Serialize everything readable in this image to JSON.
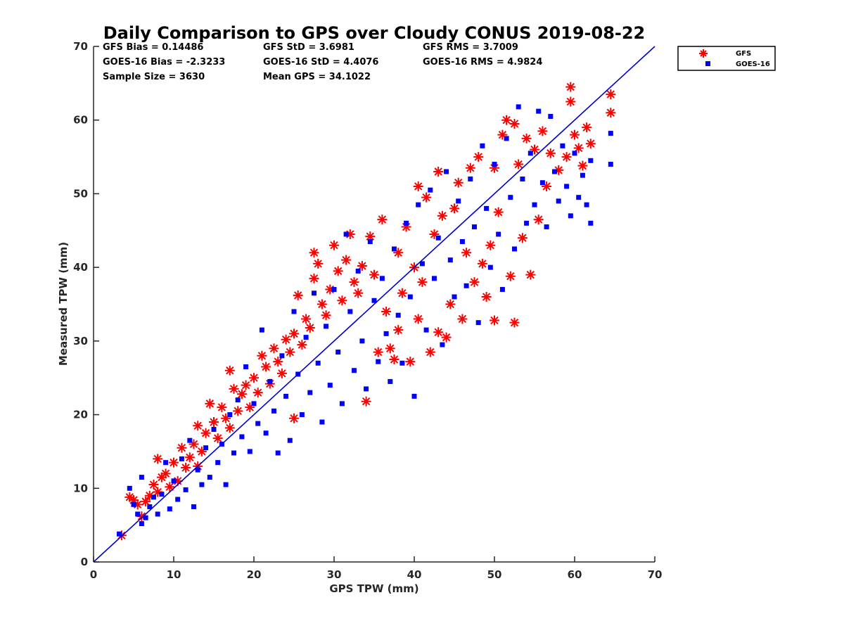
{
  "chart_data": {
    "type": "scatter",
    "title": "Daily Comparison to GPS over Cloudy CONUS 2019-08-22",
    "xlabel": "GPS TPW (mm)",
    "ylabel": "Measured TPW (mm)",
    "xlim": [
      0,
      70
    ],
    "ylim": [
      0,
      70
    ],
    "xticks": [
      "0",
      "10",
      "20",
      "30",
      "40",
      "50",
      "60",
      "70"
    ],
    "yticks": [
      "0",
      "10",
      "20",
      "30",
      "40",
      "50",
      "60",
      "70"
    ],
    "grid": false,
    "legend_position": "outside top-right",
    "reference_line": {
      "x": [
        0,
        70
      ],
      "y": [
        0,
        70
      ],
      "color": "#0000cc"
    },
    "stats": {
      "row1": [
        "GFS Bias = 0.14486",
        "GFS StD = 3.6981",
        "GFS RMS = 3.7009"
      ],
      "row2": [
        "GOES-16 Bias = -2.3233",
        "GOES-16 StD = 4.4076",
        "GOES-16 RMS = 4.9824"
      ],
      "row3": [
        "Sample Size = 3630",
        "Mean GPS = 34.1022"
      ]
    },
    "series": [
      {
        "name": "GFS",
        "marker": "asterisk",
        "color": "#ff0000",
        "points": [
          [
            3.5,
            3.6
          ],
          [
            4.5,
            8.8
          ],
          [
            5,
            8.4
          ],
          [
            5.5,
            7.8
          ],
          [
            6,
            6.2
          ],
          [
            6.5,
            8.2
          ],
          [
            7,
            9.0
          ],
          [
            7.5,
            10.5
          ],
          [
            8,
            9.5
          ],
          [
            8,
            14
          ],
          [
            8.5,
            11.5
          ],
          [
            9,
            12
          ],
          [
            9.5,
            10.2
          ],
          [
            10,
            13.5
          ],
          [
            10.5,
            11
          ],
          [
            11,
            15.5
          ],
          [
            11.5,
            12.8
          ],
          [
            12,
            14.2
          ],
          [
            12.5,
            16
          ],
          [
            13,
            13
          ],
          [
            13,
            18.5
          ],
          [
            13.5,
            15
          ],
          [
            14,
            17.5
          ],
          [
            14.5,
            21.5
          ],
          [
            15,
            19
          ],
          [
            15.5,
            16.8
          ],
          [
            16,
            21
          ],
          [
            16.5,
            19.5
          ],
          [
            17,
            18.2
          ],
          [
            17,
            26
          ],
          [
            17.5,
            23.5
          ],
          [
            18,
            20.5
          ],
          [
            18.5,
            22.8
          ],
          [
            19,
            24
          ],
          [
            19.5,
            21
          ],
          [
            20,
            25
          ],
          [
            20.5,
            23
          ],
          [
            21,
            28
          ],
          [
            21.5,
            26.5
          ],
          [
            22,
            24.2
          ],
          [
            22.5,
            29
          ],
          [
            23,
            27.2
          ],
          [
            23.5,
            25.6
          ],
          [
            24,
            30.2
          ],
          [
            24.5,
            28.5
          ],
          [
            25,
            31
          ],
          [
            25,
            19.5
          ],
          [
            25.5,
            36.2
          ],
          [
            26,
            29.5
          ],
          [
            26.5,
            33
          ],
          [
            27,
            31.8
          ],
          [
            27.5,
            38.5
          ],
          [
            27.5,
            42
          ],
          [
            28,
            40.5
          ],
          [
            28.5,
            35
          ],
          [
            29,
            33.5
          ],
          [
            29.5,
            37
          ],
          [
            30,
            43
          ],
          [
            30.5,
            39.5
          ],
          [
            31,
            35.5
          ],
          [
            31.5,
            41
          ],
          [
            32,
            44.5
          ],
          [
            32.5,
            38
          ],
          [
            33,
            36.5
          ],
          [
            33.5,
            40.2
          ],
          [
            34,
            21.8
          ],
          [
            34.5,
            44.2
          ],
          [
            35,
            39
          ],
          [
            35.5,
            28.5
          ],
          [
            36,
            46.5
          ],
          [
            36.5,
            34
          ],
          [
            37,
            29
          ],
          [
            37.5,
            27.5
          ],
          [
            38,
            42
          ],
          [
            38,
            31.5
          ],
          [
            38.5,
            36.5
          ],
          [
            39,
            45.5
          ],
          [
            39.5,
            27.2
          ],
          [
            40,
            40
          ],
          [
            40.5,
            33
          ],
          [
            40.5,
            51
          ],
          [
            41,
            38
          ],
          [
            41.5,
            49.5
          ],
          [
            42,
            28.5
          ],
          [
            42.5,
            44.5
          ],
          [
            43,
            31.2
          ],
          [
            43,
            53
          ],
          [
            43.5,
            47
          ],
          [
            44,
            30.5
          ],
          [
            44.5,
            35
          ],
          [
            45,
            48
          ],
          [
            45.5,
            51.5
          ],
          [
            46,
            33
          ],
          [
            46.5,
            42
          ],
          [
            47,
            53.5
          ],
          [
            47.5,
            38
          ],
          [
            48,
            55
          ],
          [
            48.5,
            40.5
          ],
          [
            49,
            36
          ],
          [
            49.5,
            43
          ],
          [
            50,
            32.8
          ],
          [
            50,
            53.5
          ],
          [
            50.5,
            47.5
          ],
          [
            51,
            58
          ],
          [
            51.5,
            60
          ],
          [
            52,
            38.8
          ],
          [
            52.5,
            32.5
          ],
          [
            52.5,
            59.5
          ],
          [
            53,
            54
          ],
          [
            53.5,
            44
          ],
          [
            54,
            57.5
          ],
          [
            54.5,
            39
          ],
          [
            55,
            56
          ],
          [
            55.5,
            46.5
          ],
          [
            56,
            58.5
          ],
          [
            56.5,
            51
          ],
          [
            57,
            55.5
          ],
          [
            58,
            53.2
          ],
          [
            59,
            55
          ],
          [
            59.5,
            64.5
          ],
          [
            59.5,
            62.5
          ],
          [
            60,
            58
          ],
          [
            60.5,
            56.2
          ],
          [
            61,
            53.8
          ],
          [
            61.5,
            59
          ],
          [
            62,
            56.8
          ],
          [
            64.5,
            63.5
          ],
          [
            64.5,
            61
          ]
        ]
      },
      {
        "name": "GOES-16",
        "marker": "square",
        "color": "#0000ff",
        "points": [
          [
            3.2,
            3.8
          ],
          [
            4.5,
            10
          ],
          [
            5,
            7.8
          ],
          [
            5.5,
            6.5
          ],
          [
            6,
            5.2
          ],
          [
            6,
            11.5
          ],
          [
            6.5,
            6
          ],
          [
            7,
            7.5
          ],
          [
            7.5,
            8.8
          ],
          [
            8,
            6.5
          ],
          [
            8.5,
            9.2
          ],
          [
            9,
            13.5
          ],
          [
            9.5,
            7.2
          ],
          [
            10,
            11
          ],
          [
            10.5,
            8.5
          ],
          [
            11,
            14
          ],
          [
            11.5,
            9.8
          ],
          [
            12,
            16.5
          ],
          [
            12.5,
            7.5
          ],
          [
            13,
            12.5
          ],
          [
            13.5,
            10.5
          ],
          [
            14,
            15.5
          ],
          [
            14.5,
            11.5
          ],
          [
            15,
            18
          ],
          [
            15.5,
            13.5
          ],
          [
            16,
            16
          ],
          [
            16.5,
            10.5
          ],
          [
            17,
            20
          ],
          [
            17.5,
            14.8
          ],
          [
            18,
            22
          ],
          [
            18.5,
            17
          ],
          [
            19,
            26.5
          ],
          [
            19.5,
            15
          ],
          [
            20,
            21.5
          ],
          [
            20.5,
            18.8
          ],
          [
            21,
            31.5
          ],
          [
            21.5,
            17.5
          ],
          [
            22,
            24.5
          ],
          [
            22.5,
            20.5
          ],
          [
            23,
            14.8
          ],
          [
            23.5,
            28
          ],
          [
            24,
            22.5
          ],
          [
            24.5,
            16.5
          ],
          [
            25,
            34
          ],
          [
            25.5,
            25.5
          ],
          [
            26,
            20
          ],
          [
            26.5,
            30.5
          ],
          [
            27,
            23
          ],
          [
            27.5,
            36.5
          ],
          [
            28,
            27
          ],
          [
            28.5,
            19
          ],
          [
            29,
            32
          ],
          [
            29.5,
            24
          ],
          [
            30,
            37
          ],
          [
            30.5,
            28.5
          ],
          [
            31,
            21.5
          ],
          [
            31.5,
            44.5
          ],
          [
            32,
            34
          ],
          [
            32.5,
            26
          ],
          [
            33,
            39.5
          ],
          [
            33.5,
            30
          ],
          [
            34,
            23.5
          ],
          [
            34.5,
            43.5
          ],
          [
            35,
            35.5
          ],
          [
            35.5,
            27.2
          ],
          [
            36,
            38.5
          ],
          [
            36.5,
            31
          ],
          [
            37,
            24.5
          ],
          [
            37.5,
            42.5
          ],
          [
            38,
            33.5
          ],
          [
            38.5,
            27
          ],
          [
            39,
            46
          ],
          [
            39.5,
            36
          ],
          [
            40,
            22.5
          ],
          [
            40.5,
            48.5
          ],
          [
            41,
            40.5
          ],
          [
            41.5,
            31.5
          ],
          [
            42,
            50.5
          ],
          [
            42.5,
            38.5
          ],
          [
            43,
            44
          ],
          [
            43.5,
            29.5
          ],
          [
            44,
            53
          ],
          [
            44.5,
            41
          ],
          [
            45,
            36
          ],
          [
            45.5,
            49
          ],
          [
            46,
            43.5
          ],
          [
            46.5,
            37.5
          ],
          [
            47,
            52
          ],
          [
            47.5,
            45.5
          ],
          [
            48,
            32.5
          ],
          [
            48.5,
            56.5
          ],
          [
            49,
            48
          ],
          [
            49.5,
            40
          ],
          [
            50,
            54
          ],
          [
            50.5,
            44.5
          ],
          [
            51,
            37
          ],
          [
            51.5,
            57.5
          ],
          [
            52,
            49.5
          ],
          [
            52.5,
            42.5
          ],
          [
            53,
            61.8
          ],
          [
            53.5,
            52
          ],
          [
            54,
            46
          ],
          [
            54.5,
            55.5
          ],
          [
            55,
            48.5
          ],
          [
            55.5,
            61.2
          ],
          [
            56,
            51.5
          ],
          [
            56.5,
            45.5
          ],
          [
            57,
            60.5
          ],
          [
            57.5,
            53
          ],
          [
            58,
            49
          ],
          [
            58.5,
            56.5
          ],
          [
            59,
            51
          ],
          [
            59.5,
            47
          ],
          [
            60,
            55.5
          ],
          [
            60.5,
            49.5
          ],
          [
            61,
            52.5
          ],
          [
            61.5,
            48.5
          ],
          [
            62,
            46
          ],
          [
            62,
            54.5
          ],
          [
            64.5,
            58.2
          ],
          [
            64.5,
            54
          ]
        ]
      }
    ]
  }
}
